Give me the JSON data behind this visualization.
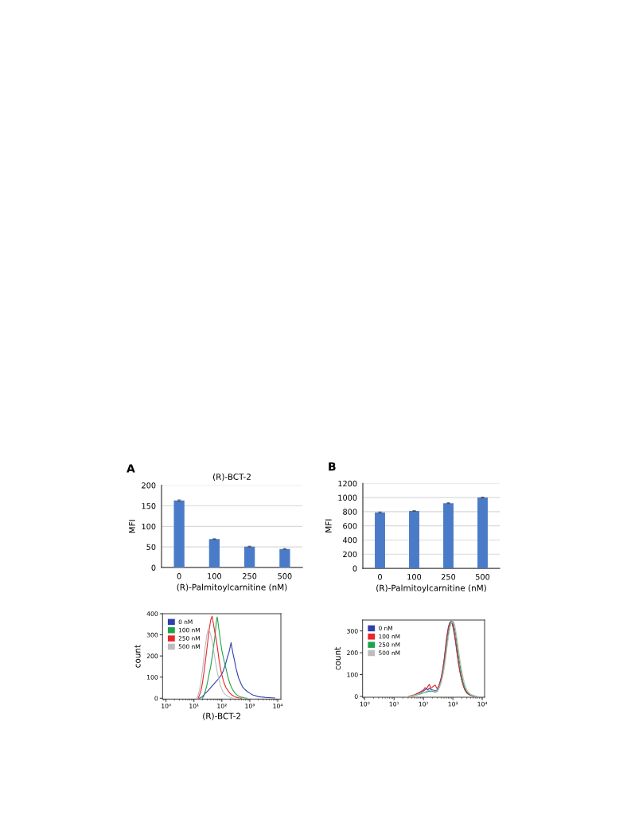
{
  "chart_data": [
    {
      "type": "bar",
      "annotations": [
        "A"
      ],
      "title": "(R)-BCT-2",
      "xlabel": "(R)-Palmitoylcarnitine (nM)",
      "ylabel": "MFI",
      "categories": [
        "0",
        "100",
        "250",
        "500"
      ],
      "values": [
        163,
        69,
        51,
        45
      ],
      "errors": [
        1.5,
        1,
        1,
        1
      ],
      "color": "#4a7bc8",
      "ylim": [
        0,
        200
      ],
      "yticks": [
        0,
        50,
        100,
        150,
        200
      ],
      "grid": "y"
    },
    {
      "type": "bar",
      "annotations": [
        "B"
      ],
      "xlabel": "(R)-Palmitoylcarnitine (nM)",
      "ylabel": "MFI",
      "categories": [
        "0",
        "100",
        "250",
        "500"
      ],
      "values": [
        790,
        810,
        920,
        1000
      ],
      "errors": [
        6,
        6,
        6,
        6
      ],
      "color": "#4a7bc8",
      "ylim": [
        0,
        1200
      ],
      "yticks": [
        0,
        200,
        400,
        600,
        800,
        1000,
        1200
      ],
      "grid": "y"
    },
    {
      "type": "line",
      "xlabel": "(R)-BCT-2",
      "ylabel": "count",
      "log": "x",
      "legend": "top left",
      "xlim": [
        0.75,
        13000
      ],
      "xticks": [
        {
          "value": 1,
          "label": "10⁰"
        },
        {
          "value": 10,
          "label": "10¹"
        },
        {
          "value": 100,
          "label": "10²"
        },
        {
          "value": 1000,
          "label": "10³"
        },
        {
          "value": 10000,
          "label": "10⁴"
        }
      ],
      "ylim": [
        -4,
        400
      ],
      "yticks": [
        0,
        100,
        200,
        300,
        400
      ],
      "series": [
        {
          "name": "0 nM",
          "color": "#2f3fae",
          "x": [
            15.8,
            20,
            25.1,
            31.6,
            39.8,
            50.1,
            63.1,
            79.4,
            100,
            112,
            126,
            141,
            158,
            178,
            200,
            214,
            224,
            251,
            282,
            316,
            355,
            398,
            447,
            501,
            562,
            631,
            794,
            1000,
            1260,
            1580,
            2000,
            2510,
            3160,
            3980,
            5010,
            6310,
            7940
          ],
          "values": [
            0,
            8,
            22,
            35,
            50,
            65,
            80,
            95,
            115,
            130,
            150,
            170,
            195,
            215,
            245,
            263,
            245,
            210,
            180,
            145,
            120,
            95,
            80,
            65,
            52,
            45,
            33,
            24,
            16,
            12,
            8,
            6,
            5,
            3,
            3,
            2,
            1
          ]
        },
        {
          "name": "100 nM",
          "color": "#1fa34a",
          "x": [
            20,
            22.4,
            25.1,
            28.2,
            31.6,
            35.5,
            39.8,
            44.7,
            50.1,
            56.2,
            63.1,
            67.6,
            70.8,
            79.4,
            89.1,
            100,
            112,
            126,
            141,
            158,
            178,
            200,
            224,
            251,
            282,
            316,
            398,
            501,
            631,
            794
          ],
          "values": [
            0,
            10,
            30,
            55,
            85,
            120,
            150,
            195,
            240,
            290,
            360,
            385,
            370,
            320,
            270,
            225,
            195,
            165,
            140,
            110,
            85,
            65,
            50,
            38,
            28,
            20,
            10,
            5,
            2,
            0
          ]
        },
        {
          "name": "250 nM",
          "color": "#e8272a",
          "x": [
            14.1,
            15.8,
            17.8,
            20,
            22.4,
            25.1,
            28.2,
            31.6,
            35.5,
            39.8,
            44.7,
            50.1,
            56.2,
            63.1,
            70.8,
            79.4,
            89.1,
            100,
            112,
            126,
            141,
            158,
            178,
            200,
            224,
            251,
            282,
            316,
            398,
            501
          ],
          "values": [
            0,
            15,
            35,
            70,
            115,
            165,
            220,
            275,
            330,
            370,
            388,
            350,
            310,
            275,
            230,
            180,
            140,
            110,
            85,
            65,
            50,
            40,
            30,
            22,
            16,
            12,
            8,
            5,
            2,
            0
          ]
        },
        {
          "name": "500 nM",
          "color": "#bdbdbd",
          "x": [
            12.6,
            14.1,
            15.8,
            17.8,
            20,
            22.4,
            25.1,
            28.2,
            31.6,
            35.5,
            39.8,
            44.7,
            50.1,
            56.2,
            63.1,
            70.8,
            79.4,
            89.1,
            100,
            112,
            126,
            158,
            200,
            251
          ],
          "values": [
            0,
            15,
            40,
            80,
            130,
            185,
            240,
            290,
            325,
            320,
            300,
            270,
            230,
            190,
            150,
            115,
            85,
            60,
            42,
            30,
            20,
            10,
            4,
            0
          ]
        }
      ]
    },
    {
      "type": "line",
      "ylabel": "count",
      "log": "x",
      "legend": "top left",
      "xlim": [
        0.85,
        12000
      ],
      "xticks": [
        {
          "value": 1,
          "label": "10⁰"
        },
        {
          "value": 10,
          "label": "10¹"
        },
        {
          "value": 100,
          "label": "10²"
        },
        {
          "value": 1000,
          "label": "10³"
        },
        {
          "value": 10000,
          "label": "10⁴"
        }
      ],
      "ylim": [
        -4,
        350
      ],
      "yticks": [
        0,
        100,
        200,
        300
      ],
      "x": [
        31.6,
        39.8,
        50.1,
        63.1,
        79.4,
        100,
        112,
        126,
        141,
        158,
        178,
        200,
        224,
        251,
        282,
        316,
        355,
        398,
        447,
        501,
        562,
        631,
        708,
        794,
        891,
        1000,
        1120,
        1260,
        1410,
        1580,
        1780,
        2000,
        2240,
        2510,
        2820,
        3160,
        3980,
        5010,
        6310
      ],
      "series": [
        {
          "name": "0 nM",
          "color": "#2f3fae",
          "values": [
            null,
            null,
            6,
            12,
            18,
            25,
            30,
            35,
            30,
            38,
            32,
            30,
            28,
            25,
            28,
            40,
            60,
            85,
            120,
            165,
            225,
            280,
            320,
            340,
            345,
            320,
            285,
            240,
            190,
            145,
            105,
            75,
            50,
            32,
            20,
            12,
            5,
            null,
            null
          ]
        },
        {
          "name": "100 nM",
          "color": "#e8272a",
          "values": [
            0,
            4,
            8,
            14,
            22,
            30,
            40,
            35,
            45,
            55,
            38,
            42,
            48,
            52,
            38,
            40,
            55,
            80,
            115,
            160,
            215,
            270,
            315,
            335,
            340,
            330,
            295,
            250,
            200,
            150,
            110,
            78,
            52,
            34,
            22,
            13,
            5,
            2,
            0
          ]
        },
        {
          "name": "250 nM",
          "color": "#1fa34a",
          "values": [
            0,
            2,
            4,
            8,
            12,
            16,
            18,
            20,
            22,
            24,
            22,
            24,
            22,
            20,
            22,
            30,
            45,
            65,
            95,
            135,
            185,
            240,
            290,
            325,
            340,
            345,
            320,
            280,
            230,
            180,
            135,
            95,
            65,
            42,
            28,
            17,
            7,
            3,
            0
          ]
        },
        {
          "name": "500 nM",
          "color": "#bdbdbd",
          "values": [
            0,
            2,
            5,
            9,
            14,
            18,
            20,
            24,
            26,
            28,
            25,
            27,
            25,
            24,
            25,
            32,
            45,
            65,
            90,
            125,
            170,
            225,
            275,
            315,
            340,
            345,
            335,
            300,
            255,
            205,
            160,
            120,
            85,
            58,
            38,
            24,
            10,
            4,
            0
          ]
        }
      ]
    }
  ]
}
